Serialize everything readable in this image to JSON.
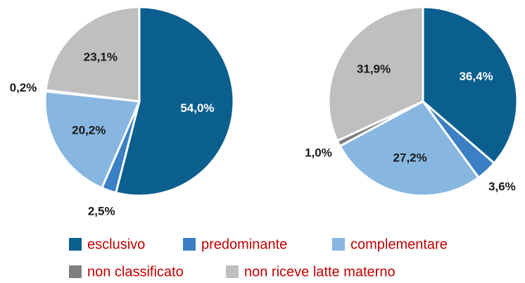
{
  "chart_data": [
    {
      "type": "pie",
      "values": [
        54.0,
        2.5,
        20.2,
        0.2,
        23.1
      ],
      "value_labels": [
        "54,0%",
        "2,5%",
        "20,2%",
        "0,2%",
        "23,1%"
      ]
    },
    {
      "type": "pie",
      "values": [
        36.4,
        3.6,
        27.2,
        1.0,
        31.9
      ],
      "value_labels": [
        "36,4%",
        "3,6%",
        "27,2%",
        "1,0%",
        "31,9%"
      ]
    }
  ],
  "legend": {
    "categories": [
      "esclusivo",
      "predominante",
      "complementare",
      "non classificato",
      "non riceve latte materno"
    ],
    "colors": [
      "#0a5f8e",
      "#3b7fc4",
      "#87b6e1",
      "#7f7f7f",
      "#bfbfbf"
    ]
  }
}
